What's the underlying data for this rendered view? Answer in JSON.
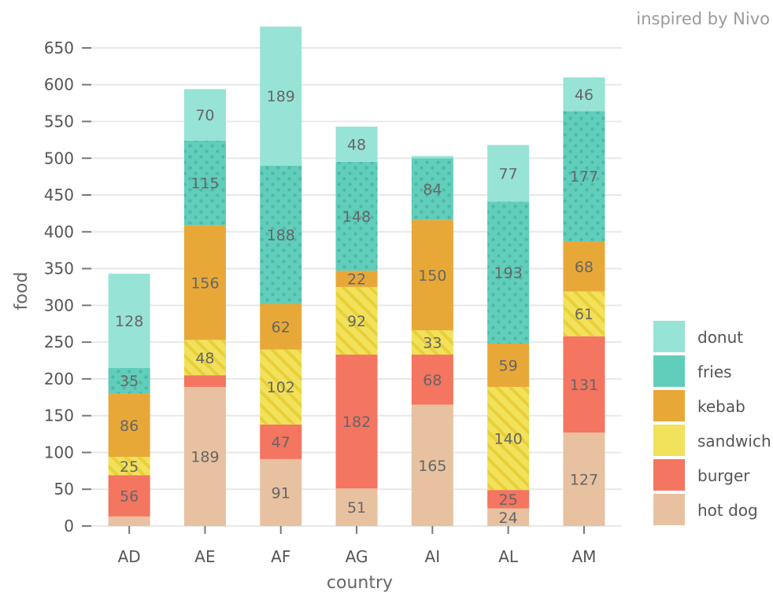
{
  "credit": "inspired by Nivo",
  "chart_data": {
    "type": "bar",
    "stacked": true,
    "xlabel": "country",
    "ylabel": "food",
    "ylim": [
      0,
      680
    ],
    "yticks": [
      0,
      50,
      100,
      150,
      200,
      250,
      300,
      350,
      400,
      450,
      500,
      550,
      600,
      650
    ],
    "grid": true,
    "legend_position": "right",
    "categories": [
      "AD",
      "AE",
      "AF",
      "AG",
      "AI",
      "AL",
      "AM"
    ],
    "series": [
      {
        "name": "hot dog",
        "color": "#e8c1a0",
        "pattern": "none",
        "values": [
          13,
          189,
          91,
          51,
          165,
          24,
          127
        ],
        "labels": [
          "",
          "189",
          "91",
          "51",
          "165",
          "24",
          "127"
        ]
      },
      {
        "name": "burger",
        "color": "#f47560",
        "pattern": "none",
        "values": [
          56,
          16,
          47,
          182,
          68,
          25,
          131
        ],
        "labels": [
          "56",
          "",
          "47",
          "182",
          "68",
          "25",
          "131"
        ]
      },
      {
        "name": "sandwich",
        "color": "#f1e15b",
        "pattern": "lines",
        "values": [
          25,
          48,
          102,
          92,
          33,
          140,
          61
        ],
        "labels": [
          "25",
          "48",
          "102",
          "92",
          "33",
          "140",
          "61"
        ]
      },
      {
        "name": "kebab",
        "color": "#e8a838",
        "pattern": "none",
        "values": [
          86,
          156,
          62,
          22,
          150,
          59,
          68
        ],
        "labels": [
          "86",
          "156",
          "62",
          "22",
          "150",
          "59",
          "68"
        ]
      },
      {
        "name": "fries",
        "color": "#61cdbb",
        "pattern": "dots",
        "values": [
          35,
          115,
          188,
          148,
          84,
          193,
          177
        ],
        "labels": [
          "35",
          "115",
          "188",
          "148",
          "84",
          "193",
          "177"
        ]
      },
      {
        "name": "donut",
        "color": "#97e3d5",
        "pattern": "none",
        "values": [
          128,
          70,
          189,
          48,
          3,
          77,
          46
        ],
        "labels": [
          "128",
          "70",
          "189",
          "48",
          "",
          "77",
          "46"
        ]
      }
    ],
    "legend_order": [
      "donut",
      "fries",
      "kebab",
      "sandwich",
      "burger",
      "hot dog"
    ]
  }
}
